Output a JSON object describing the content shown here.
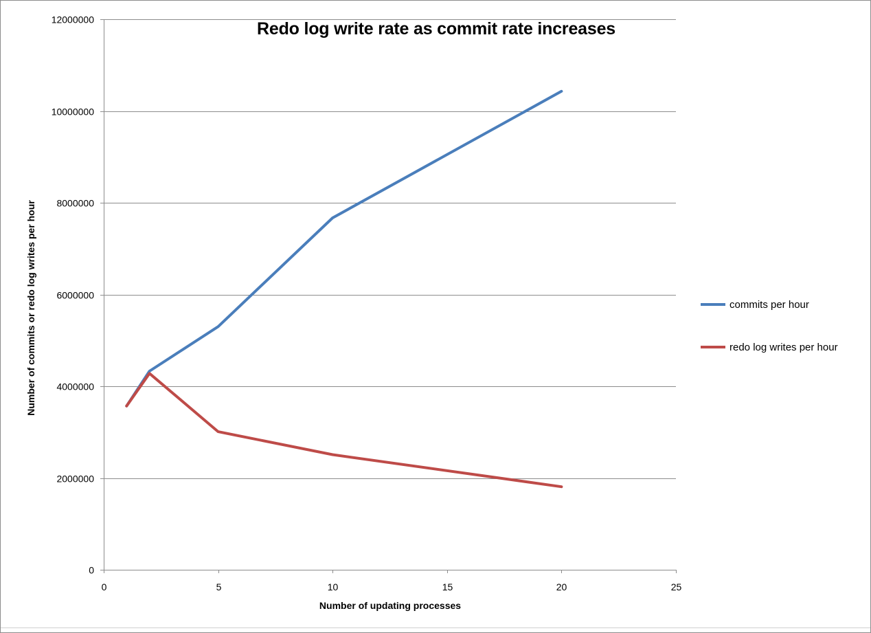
{
  "chart_data": {
    "type": "line",
    "title": "Redo log write rate as commit rate increases",
    "xlabel": "Number of updating processes",
    "ylabel": "Number of commits or redo log writes per hour",
    "xlim": [
      0,
      25
    ],
    "ylim": [
      0,
      12000000
    ],
    "x_ticks": [
      0,
      5,
      10,
      15,
      20,
      25
    ],
    "y_ticks": [
      0,
      2000000,
      4000000,
      6000000,
      8000000,
      10000000,
      12000000
    ],
    "x_tick_labels": [
      "0",
      "5",
      "10",
      "15",
      "20",
      "25"
    ],
    "y_tick_labels": [
      "0",
      "2000000",
      "4000000",
      "6000000",
      "8000000",
      "10000000",
      "12000000"
    ],
    "grid": "horizontal major gridlines",
    "legend_position": "right",
    "series": [
      {
        "name": "commits per hour",
        "color": "#4a7ebb",
        "x": [
          1,
          2,
          5,
          10,
          20
        ],
        "y": [
          3570000,
          4330000,
          5300000,
          7670000,
          10430000
        ]
      },
      {
        "name": "redo log writes per hour",
        "color": "#be4b48",
        "x": [
          1,
          2,
          5,
          10,
          20
        ],
        "y": [
          3570000,
          4280000,
          3010000,
          2510000,
          1810000
        ]
      }
    ]
  }
}
